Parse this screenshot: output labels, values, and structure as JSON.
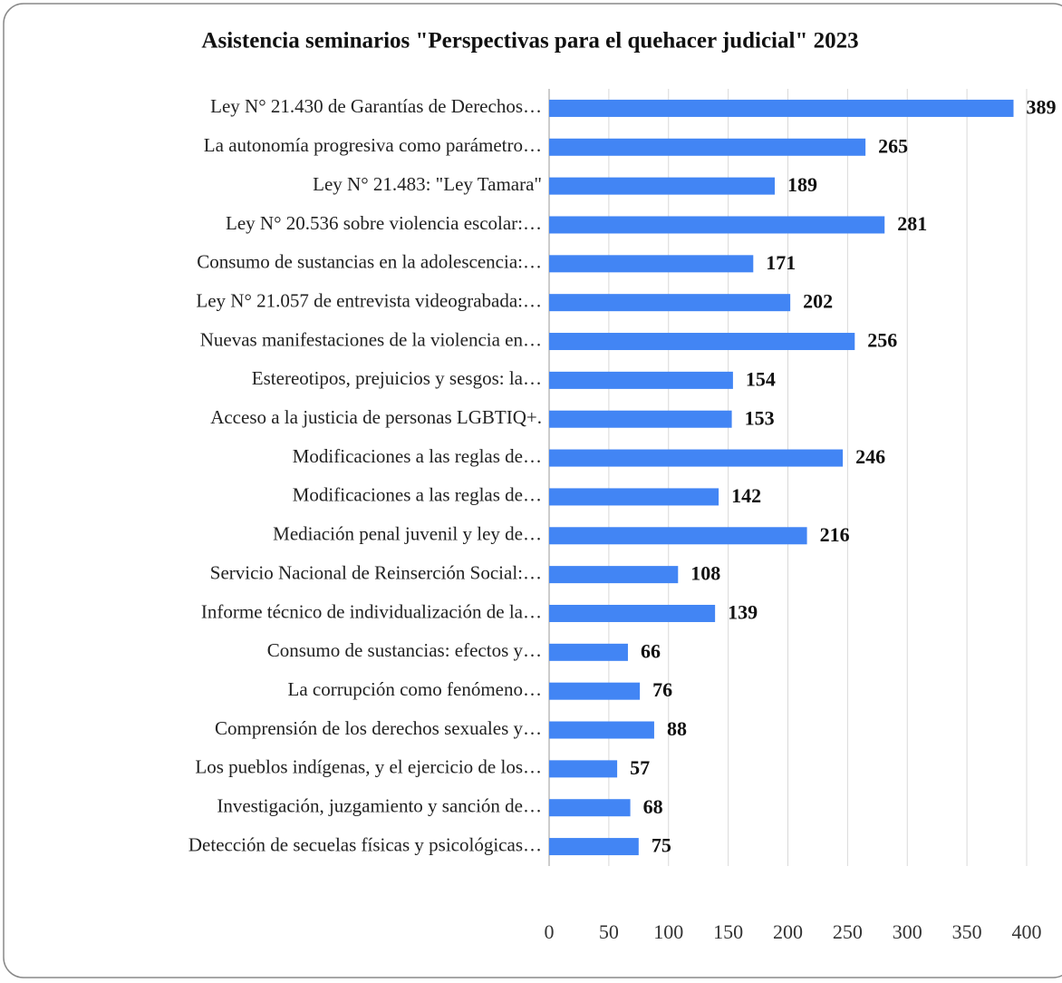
{
  "chart_data": {
    "type": "bar",
    "orientation": "horizontal",
    "title": "Asistencia seminarios \"Perspectivas para el quehacer judicial\" 2023",
    "categories": [
      "Ley N° 21.430 de Garantías de Derechos…",
      "La autonomía progresiva como parámetro…",
      "Ley N° 21.483: \"Ley Tamara\"",
      "Ley N° 20.536 sobre violencia escolar:…",
      "Consumo de sustancias en la adolescencia:…",
      "Ley N° 21.057 de entrevista videograbada:…",
      "Nuevas manifestaciones de la violencia en…",
      "Estereotipos, prejuicios y sesgos: la…",
      "Acceso a la justicia de personas LGBTIQ+.",
      "Modificaciones a las reglas de…",
      "Modificaciones a las reglas de…",
      "Mediación penal juvenil y ley de…",
      "Servicio Nacional de Reinserción Social:…",
      "Informe técnico de individualización de la…",
      "Consumo de sustancias: efectos y…",
      "La corrupción como fenómeno…",
      "Comprensión de los derechos sexuales y…",
      "Los pueblos indígenas, y el ejercicio de los…",
      "Investigación, juzgamiento y sanción de…",
      "Detección de secuelas físicas y psicológicas…"
    ],
    "values": [
      389,
      265,
      189,
      281,
      171,
      202,
      256,
      154,
      153,
      246,
      142,
      216,
      108,
      139,
      66,
      76,
      88,
      57,
      68,
      75
    ],
    "color": "#4285f4",
    "xlim": [
      0,
      400
    ],
    "xticks": [
      0,
      50,
      100,
      150,
      200,
      250,
      300,
      350,
      400
    ],
    "grid": true
  }
}
